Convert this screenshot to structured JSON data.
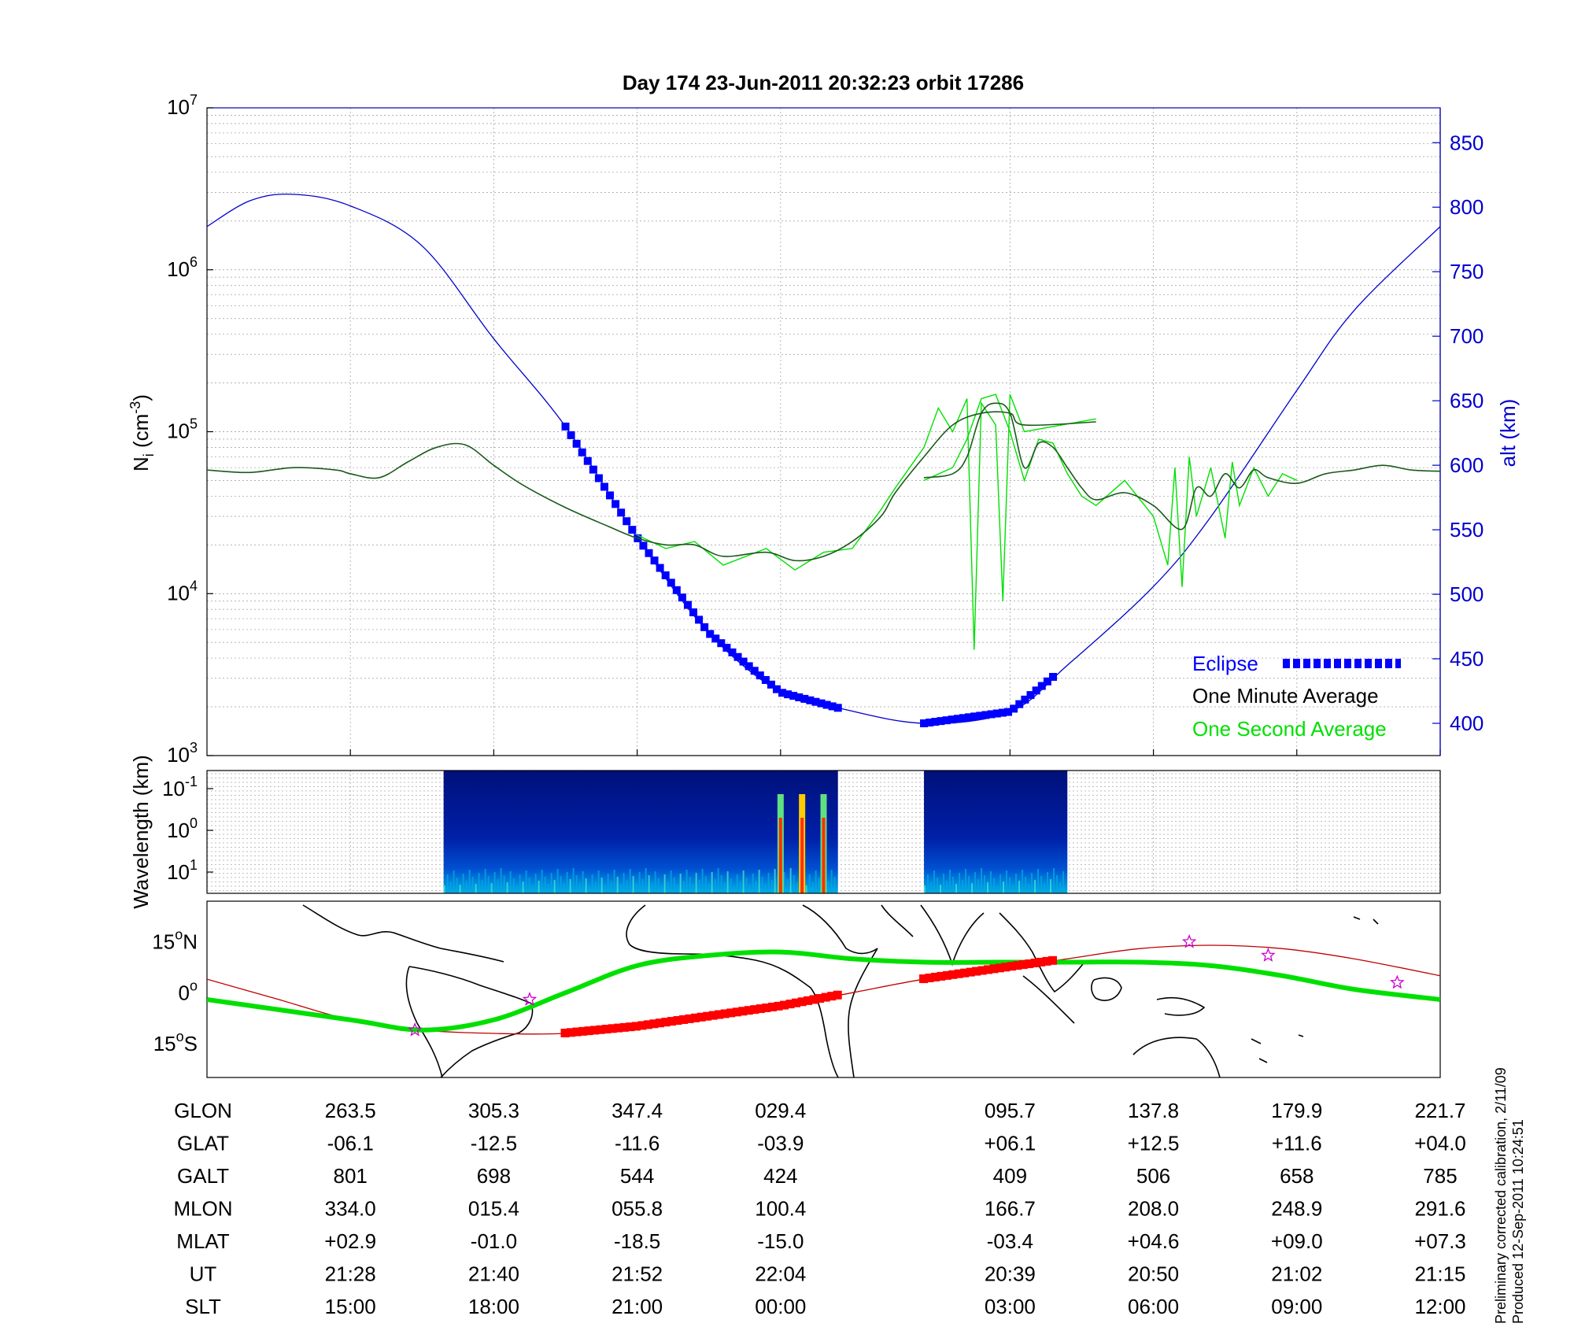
{
  "title": "Day 174  23-Jun-2011 20:32:23   orbit 17286",
  "side_note": [
    "Preliminary corrected calibration, 2/11/09",
    "Produced 12-Sep-2011 10:24:51"
  ],
  "colors": {
    "altitude": "#0000cc",
    "eclipse": "#0000ff",
    "one_minute": "#000000",
    "one_second": "#00e000",
    "track": "#00e000",
    "track_eclipse": "#ff0000",
    "footprint": "#c00000",
    "star": "#cc00cc"
  },
  "chart_data": [
    {
      "type": "line",
      "panel": "density",
      "ylabel_main": "N",
      "ylabel_sub": "i",
      "ylabel_unit": " (cm",
      "ylabel_exp": "-3",
      "ylabel_close": ")",
      "yscale": "log",
      "ylim": [
        1000,
        10000000
      ],
      "yticks": [
        {
          "base": "10",
          "exp": "3",
          "value": 1000
        },
        {
          "base": "10",
          "exp": "4",
          "value": 10000
        },
        {
          "base": "10",
          "exp": "5",
          "value": 100000
        },
        {
          "base": "10",
          "exp": "6",
          "value": 1000000
        },
        {
          "base": "10",
          "exp": "7",
          "value": 10000000
        }
      ],
      "y2label": "alt (km)",
      "y2lim": [
        375,
        877
      ],
      "y2ticks": [
        400,
        450,
        500,
        550,
        600,
        650,
        700,
        750,
        800,
        850
      ],
      "xlim": [
        0,
        8.6
      ],
      "xticks": [
        1,
        2,
        3,
        4,
        5.6,
        6.6,
        7.6,
        8.6
      ],
      "grid": true,
      "legend_position": "bottom-right",
      "legend": [
        {
          "label": "Eclipse",
          "color": "#0000ff"
        },
        {
          "label": "One Minute Average",
          "color": "#000000"
        },
        {
          "label": "One Second Average",
          "color": "#00e000"
        }
      ],
      "altitude_km": [
        [
          0,
          785
        ],
        [
          0.3,
          805
        ],
        [
          0.6,
          810
        ],
        [
          1.0,
          801
        ],
        [
          1.5,
          770
        ],
        [
          2.0,
          698
        ],
        [
          2.5,
          630
        ],
        [
          3.0,
          544
        ],
        [
          3.5,
          470
        ],
        [
          4.0,
          424
        ],
        [
          4.4,
          412
        ],
        [
          5.0,
          400
        ],
        [
          5.6,
          409
        ],
        [
          6.0,
          445
        ],
        [
          6.6,
          506
        ],
        [
          7.0,
          560
        ],
        [
          7.6,
          658
        ],
        [
          8.0,
          720
        ],
        [
          8.6,
          785
        ]
      ],
      "eclipse_segments": [
        [
          2.5,
          4.4
        ],
        [
          5.0,
          5.9
        ]
      ],
      "one_minute_average": [
        [
          [
            0.0,
            58000
          ],
          [
            0.3,
            56000
          ],
          [
            0.6,
            60000
          ],
          [
            0.9,
            58000
          ],
          [
            1.0,
            55000
          ],
          [
            1.2,
            52000
          ],
          [
            1.4,
            65000
          ],
          [
            1.6,
            80000
          ],
          [
            1.8,
            83000
          ],
          [
            2.0,
            62000
          ],
          [
            2.2,
            47000
          ],
          [
            2.5,
            34000
          ],
          [
            2.8,
            26000
          ],
          [
            3.0,
            22000
          ],
          [
            3.2,
            20000
          ],
          [
            3.4,
            20000
          ],
          [
            3.6,
            17000
          ],
          [
            3.9,
            18000
          ],
          [
            4.1,
            16000
          ],
          [
            4.3,
            17000
          ],
          [
            4.5,
            21000
          ],
          [
            4.7,
            30000
          ],
          [
            4.8,
            42000
          ],
          [
            5.0,
            70000
          ],
          [
            5.2,
            110000
          ],
          [
            5.4,
            130000
          ],
          [
            5.6,
            130000
          ],
          [
            5.7,
            110000
          ],
          [
            6.2,
            115000
          ]
        ],
        [
          [
            5.0,
            52000
          ],
          [
            5.2,
            55000
          ],
          [
            5.3,
            70000
          ],
          [
            5.4,
            130000
          ],
          [
            5.5,
            150000
          ],
          [
            5.6,
            130000
          ],
          [
            5.7,
            60000
          ],
          [
            5.8,
            85000
          ],
          [
            5.9,
            80000
          ],
          [
            6.0,
            60000
          ],
          [
            6.1,
            45000
          ],
          [
            6.2,
            38000
          ],
          [
            6.4,
            42000
          ],
          [
            6.6,
            35000
          ],
          [
            6.8,
            25000
          ],
          [
            6.9,
            45000
          ],
          [
            7.0,
            40000
          ],
          [
            7.1,
            55000
          ],
          [
            7.2,
            45000
          ],
          [
            7.3,
            58000
          ],
          [
            7.4,
            52000
          ],
          [
            7.6,
            48000
          ],
          [
            7.8,
            55000
          ],
          [
            8.0,
            58000
          ],
          [
            8.2,
            62000
          ],
          [
            8.4,
            58000
          ],
          [
            8.6,
            57000
          ]
        ]
      ],
      "one_second_average": [
        [
          [
            3.0,
            23000
          ],
          [
            3.2,
            19000
          ],
          [
            3.4,
            21000
          ],
          [
            3.6,
            15000
          ],
          [
            3.9,
            19000
          ],
          [
            4.1,
            14000
          ],
          [
            4.3,
            18000
          ],
          [
            4.5,
            19000
          ],
          [
            4.7,
            33000
          ],
          [
            4.8,
            45000
          ],
          [
            5.0,
            80000
          ],
          [
            5.1,
            140000
          ],
          [
            5.2,
            100000
          ],
          [
            5.3,
            160000
          ],
          [
            5.35,
            4500
          ],
          [
            5.4,
            150000
          ],
          [
            5.5,
            110000
          ],
          [
            5.55,
            9000
          ],
          [
            5.6,
            170000
          ],
          [
            5.7,
            100000
          ],
          [
            6.2,
            120000
          ]
        ],
        [
          [
            5.0,
            50000
          ],
          [
            5.2,
            60000
          ],
          [
            5.3,
            90000
          ],
          [
            5.4,
            160000
          ],
          [
            5.5,
            170000
          ],
          [
            5.6,
            100000
          ],
          [
            5.7,
            50000
          ],
          [
            5.8,
            90000
          ],
          [
            5.9,
            85000
          ],
          [
            6.0,
            55000
          ],
          [
            6.1,
            40000
          ],
          [
            6.2,
            35000
          ],
          [
            6.4,
            50000
          ],
          [
            6.6,
            30000
          ],
          [
            6.7,
            15000
          ],
          [
            6.75,
            60000
          ],
          [
            6.8,
            11000
          ],
          [
            6.85,
            70000
          ],
          [
            6.9,
            30000
          ],
          [
            7.0,
            60000
          ],
          [
            7.1,
            22000
          ],
          [
            7.15,
            65000
          ],
          [
            7.2,
            35000
          ],
          [
            7.3,
            60000
          ],
          [
            7.4,
            40000
          ],
          [
            7.5,
            55000
          ],
          [
            7.6,
            50000
          ]
        ]
      ]
    },
    {
      "type": "heatmap",
      "panel": "spectrogram",
      "ylabel": "Wavelength (km)",
      "yscale": "log",
      "yticks": [
        {
          "base": "10",
          "exp": "-1"
        },
        {
          "base": "10",
          "exp": "0"
        },
        {
          "base": "10",
          "exp": "1"
        }
      ],
      "data_intervals": [
        [
          1.65,
          4.4
        ],
        [
          5.0,
          6.0
        ]
      ],
      "bursts": [
        4.0,
        4.15,
        4.3
      ]
    },
    {
      "type": "map",
      "panel": "ground_track",
      "yticks": [
        {
          "deg": "15",
          "hemi": "N",
          "lat": 15
        },
        {
          "deg": "0",
          "hemi": "",
          "lat": 0
        },
        {
          "deg": "15",
          "hemi": "S",
          "lat": -15
        }
      ],
      "ylim": [
        -25,
        27
      ],
      "magnetic_equator_track": [
        [
          0,
          -2
        ],
        [
          1,
          -8
        ],
        [
          1.5,
          -11
        ],
        [
          2,
          -8
        ],
        [
          2.5,
          0
        ],
        [
          3,
          8
        ],
        [
          3.5,
          11
        ],
        [
          4,
          12
        ],
        [
          4.5,
          10
        ],
        [
          5,
          9
        ],
        [
          5.5,
          9
        ],
        [
          6,
          9
        ],
        [
          6.5,
          9
        ],
        [
          7,
          8
        ],
        [
          7.5,
          5
        ],
        [
          8,
          1
        ],
        [
          8.6,
          -2
        ]
      ],
      "geographic_footprint": [
        [
          0,
          4
        ],
        [
          0.5,
          -2
        ],
        [
          1,
          -8
        ],
        [
          1.5,
          -11
        ],
        [
          2,
          -12
        ],
        [
          2.5,
          -12
        ],
        [
          3,
          -10
        ],
        [
          3.5,
          -7
        ],
        [
          4,
          -4
        ],
        [
          4.5,
          0
        ],
        [
          5,
          4
        ],
        [
          5.5,
          7
        ],
        [
          6,
          10
        ],
        [
          6.5,
          13
        ],
        [
          7,
          14
        ],
        [
          7.5,
          13
        ],
        [
          8,
          10
        ],
        [
          8.6,
          5
        ]
      ],
      "stars": [
        [
          1.45,
          -11
        ],
        [
          2.25,
          -2
        ],
        [
          6.85,
          15
        ],
        [
          7.4,
          11
        ],
        [
          8.3,
          3
        ]
      ]
    }
  ],
  "ephemeris_table": {
    "row_labels": [
      "GLON",
      "GLAT",
      "GALT",
      "MLON",
      "MLAT",
      "UT",
      "SLT"
    ],
    "columns": [
      {
        "x": 1.0,
        "values": [
          "263.5",
          "-06.1",
          "801",
          "334.0",
          "+02.9",
          "21:28",
          "15:00"
        ]
      },
      {
        "x": 2.0,
        "values": [
          "305.3",
          "-12.5",
          "698",
          "015.4",
          "-01.0",
          "21:40",
          "18:00"
        ]
      },
      {
        "x": 3.0,
        "values": [
          "347.4",
          "-11.6",
          "544",
          "055.8",
          "-18.5",
          "21:52",
          "21:00"
        ]
      },
      {
        "x": 4.0,
        "values": [
          "029.4",
          "-03.9",
          "424",
          "100.4",
          "-15.0",
          "22:04",
          "00:00"
        ]
      },
      {
        "x": 5.6,
        "values": [
          "095.7",
          "+06.1",
          "409",
          "166.7",
          "-03.4",
          "20:39",
          "03:00"
        ]
      },
      {
        "x": 6.6,
        "values": [
          "137.8",
          "+12.5",
          "506",
          "208.0",
          "+04.6",
          "20:50",
          "06:00"
        ]
      },
      {
        "x": 7.6,
        "values": [
          "179.9",
          "+11.6",
          "658",
          "248.9",
          "+09.0",
          "21:02",
          "09:00"
        ]
      },
      {
        "x": 8.6,
        "values": [
          "221.7",
          "+04.0",
          "785",
          "291.6",
          "+07.3",
          "21:15",
          "12:00"
        ]
      }
    ]
  }
}
